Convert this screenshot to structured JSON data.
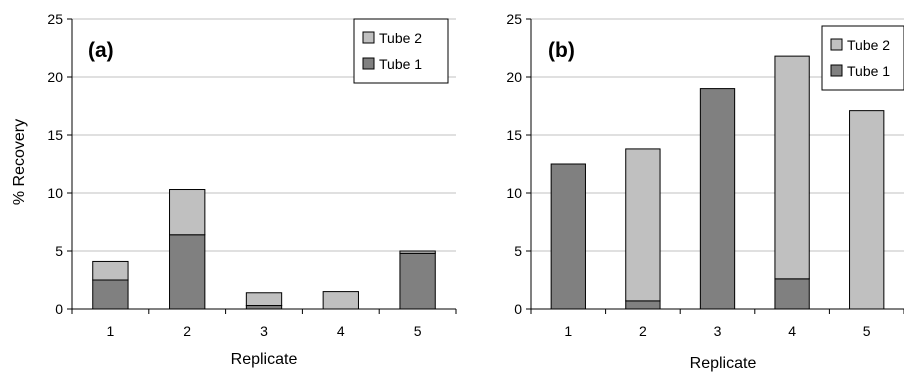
{
  "colors": {
    "tube1": "#808080",
    "tube2": "#c0c0c0",
    "grid": "#c0c0c0"
  },
  "chart_data": [
    {
      "type": "bar",
      "stacked": true,
      "panel_label": "(a)",
      "categories": [
        "1",
        "2",
        "3",
        "4",
        "5"
      ],
      "series": [
        {
          "name": "Tube 1",
          "values": [
            2.5,
            6.4,
            0.3,
            0.0,
            4.8
          ]
        },
        {
          "name": "Tube 2",
          "values": [
            1.6,
            3.9,
            1.1,
            1.5,
            0.2
          ]
        }
      ],
      "legend": [
        "Tube 2",
        "Tube 1"
      ],
      "legend_position": "top-right",
      "xlabel": "Replicate",
      "ylabel": "% Recovery",
      "ylim": [
        0,
        25
      ],
      "yticks": [
        "0",
        "5",
        "10",
        "15",
        "20",
        "25"
      ],
      "grid": true
    },
    {
      "type": "bar",
      "stacked": true,
      "panel_label": "(b)",
      "categories": [
        "1",
        "2",
        "3",
        "4",
        "5"
      ],
      "series": [
        {
          "name": "Tube 1",
          "values": [
            12.5,
            0.7,
            19.0,
            2.6,
            0.0
          ]
        },
        {
          "name": "Tube 2",
          "values": [
            0.0,
            13.1,
            0.0,
            19.2,
            17.1
          ]
        }
      ],
      "legend": [
        "Tube 2",
        "Tube 1"
      ],
      "legend_position": "top-right",
      "xlabel": "Replicate",
      "ylabel": "",
      "ylim": [
        0,
        25
      ],
      "yticks": [
        "0",
        "5",
        "10",
        "15",
        "20",
        "25"
      ],
      "grid": true
    }
  ]
}
